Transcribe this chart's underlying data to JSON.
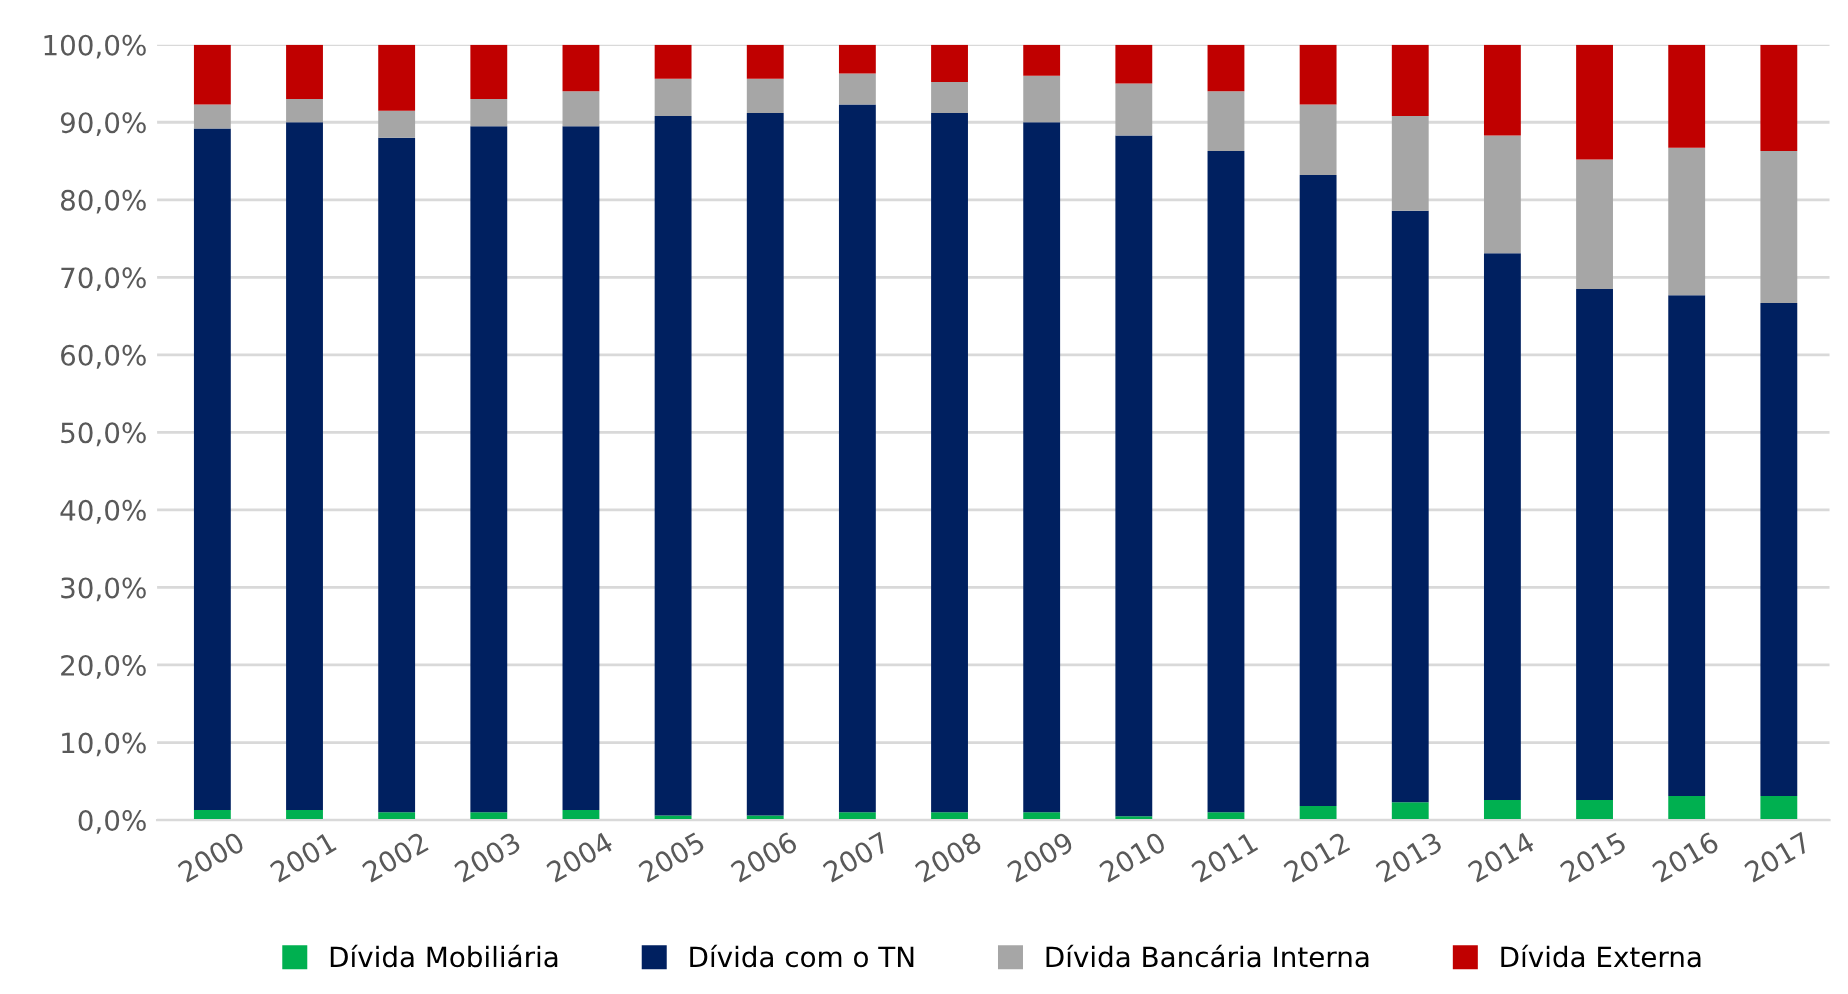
{
  "chart_data": {
    "type": "bar",
    "stacked": true,
    "categories": [
      "2000",
      "2001",
      "2002",
      "2003",
      "2004",
      "2005",
      "2006",
      "2007",
      "2008",
      "2009",
      "2010",
      "2011",
      "2012",
      "2013",
      "2014",
      "2015",
      "2016",
      "2017"
    ],
    "series": [
      {
        "name": "Dívida Mobiliária",
        "color": "#00b050",
        "values": [
          1.3,
          1.3,
          1.0,
          1.0,
          1.3,
          0.6,
          0.6,
          1.0,
          1.0,
          1.0,
          0.5,
          1.0,
          1.8,
          2.3,
          2.6,
          2.6,
          3.1,
          3.1
        ]
      },
      {
        "name": "Dívida com o TN",
        "color": "#002060",
        "values": [
          87.9,
          88.7,
          87.0,
          88.5,
          88.2,
          90.2,
          90.6,
          91.3,
          90.2,
          89.0,
          87.8,
          85.3,
          81.4,
          76.3,
          70.5,
          65.9,
          64.6,
          63.6
        ]
      },
      {
        "name": "Dívida Bancária Interna",
        "color": "#a6a6a6",
        "values": [
          3.1,
          3.0,
          3.5,
          3.5,
          4.5,
          4.8,
          4.4,
          4.0,
          4.0,
          6.0,
          6.7,
          7.7,
          9.1,
          12.2,
          15.2,
          16.7,
          19.0,
          19.6
        ]
      },
      {
        "name": "Dívida Externa",
        "color": "#c00000",
        "values": [
          7.7,
          7.0,
          8.5,
          7.0,
          6.0,
          4.4,
          4.4,
          3.7,
          4.8,
          4.0,
          5.0,
          6.0,
          7.7,
          9.2,
          11.7,
          14.8,
          13.3,
          13.7
        ]
      }
    ],
    "ylim": [
      0,
      100
    ],
    "yticks": [
      {
        "value": 0,
        "label": "0,0%"
      },
      {
        "value": 10,
        "label": "10,0%"
      },
      {
        "value": 20,
        "label": "20,0%"
      },
      {
        "value": 30,
        "label": "30,0%"
      },
      {
        "value": 40,
        "label": "40,0%"
      },
      {
        "value": 50,
        "label": "50,0%"
      },
      {
        "value": 60,
        "label": "60,0%"
      },
      {
        "value": 70,
        "label": "70,0%"
      },
      {
        "value": 80,
        "label": "80,0%"
      },
      {
        "value": 90,
        "label": "90,0%"
      },
      {
        "value": 100,
        "label": "100,0%"
      }
    ],
    "grid": "y",
    "legend": "bottom"
  }
}
